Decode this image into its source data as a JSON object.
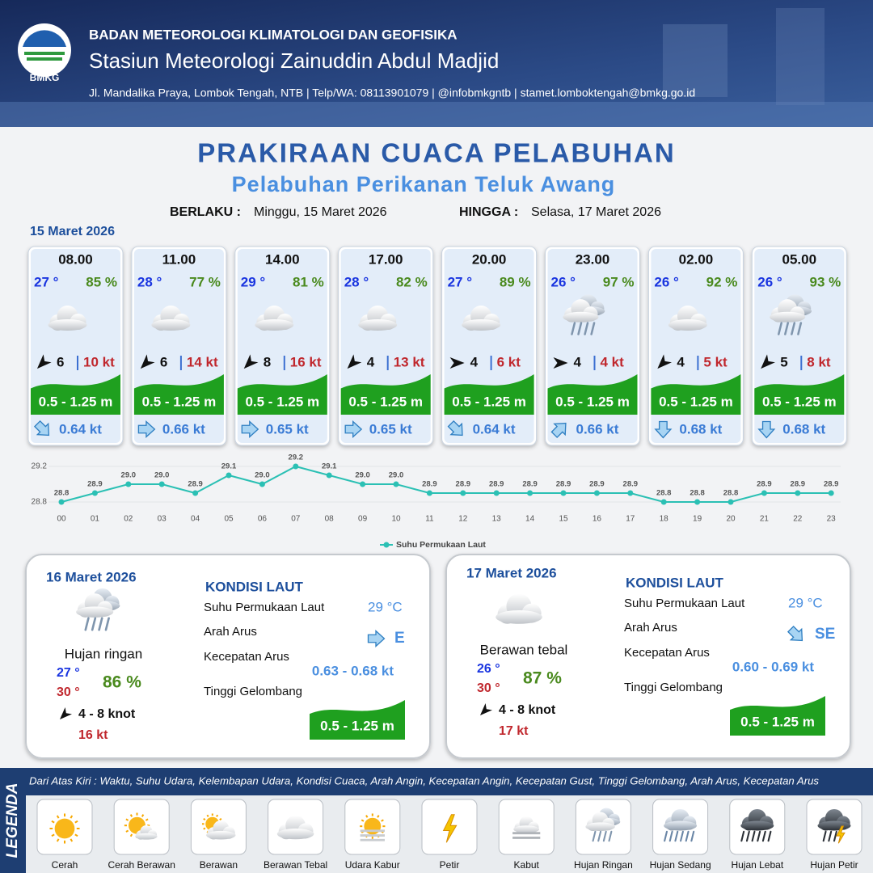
{
  "header": {
    "logo": "BMKG",
    "org": "BADAN METEOROLOGI KLIMATOLOGI DAN GEOFISIKA",
    "station": "Stasiun Meteorologi Zainuddin Abdul Madjid",
    "contact": "Jl. Mandalika Praya, Lombok Tengah, NTB | Telp/WA: 08113901079 | @infobmkgntb | stamet.lomboktengah@bmkg.go.id"
  },
  "title": "PRAKIRAAN CUACA PELABUHAN",
  "subtitle": "Pelabuhan Perikanan Teluk Awang",
  "validity": {
    "from_label": "BERLAKU :",
    "from": "Minggu, 15 Maret 2026",
    "to_label": "HINGGA :",
    "to": "Selasa, 17 Maret 2026"
  },
  "today": {
    "date": "15 Maret 2026",
    "cards": [
      {
        "time": "08.00",
        "temp": "27 °",
        "humidity": "85 %",
        "icon": "berawan-tebal",
        "wind_dir": "SW",
        "wind": "6",
        "gust": "10 kt",
        "wave": "0.5 - 1.25 m",
        "current_dir": "SE",
        "current": "0.64 kt"
      },
      {
        "time": "11.00",
        "temp": "28 °",
        "humidity": "77 %",
        "icon": "berawan-tebal",
        "wind_dir": "SW",
        "wind": "6",
        "gust": "14 kt",
        "wave": "0.5 - 1.25 m",
        "current_dir": "E",
        "current": "0.66 kt"
      },
      {
        "time": "14.00",
        "temp": "29 °",
        "humidity": "81 %",
        "icon": "berawan-tebal",
        "wind_dir": "SW",
        "wind": "8",
        "gust": "16 kt",
        "wave": "0.5 - 1.25 m",
        "current_dir": "E",
        "current": "0.65 kt"
      },
      {
        "time": "17.00",
        "temp": "28 °",
        "humidity": "82 %",
        "icon": "berawan-tebal",
        "wind_dir": "SW",
        "wind": "4",
        "gust": "13 kt",
        "wave": "0.5 - 1.25 m",
        "current_dir": "E",
        "current": "0.65 kt"
      },
      {
        "time": "20.00",
        "temp": "27 °",
        "humidity": "89 %",
        "icon": "berawan-tebal",
        "wind_dir": "E",
        "wind": "4",
        "gust": "6 kt",
        "wave": "0.5 - 1.25 m",
        "current_dir": "SE",
        "current": "0.64 kt"
      },
      {
        "time": "23.00",
        "temp": "26 °",
        "humidity": "97 %",
        "icon": "hujan-ringan",
        "wind_dir": "E",
        "wind": "4",
        "gust": "4 kt",
        "wave": "0.5 - 1.25 m",
        "current_dir": "NE",
        "current": "0.66 kt"
      },
      {
        "time": "02.00",
        "temp": "26 °",
        "humidity": "92 %",
        "icon": "berawan-tebal",
        "wind_dir": "SW",
        "wind": "4",
        "gust": "5 kt",
        "wave": "0.5 - 1.25 m",
        "current_dir": "S",
        "current": "0.68 kt"
      },
      {
        "time": "05.00",
        "temp": "26 °",
        "humidity": "93 %",
        "icon": "hujan-ringan",
        "wind_dir": "SW",
        "wind": "5",
        "gust": "8 kt",
        "wave": "0.5 - 1.25 m",
        "current_dir": "S",
        "current": "0.68 kt"
      }
    ]
  },
  "chart_data": {
    "type": "line",
    "categories": [
      "00",
      "01",
      "02",
      "03",
      "04",
      "05",
      "06",
      "07",
      "08",
      "09",
      "10",
      "11",
      "12",
      "13",
      "14",
      "15",
      "16",
      "17",
      "18",
      "19",
      "20",
      "21",
      "22",
      "23"
    ],
    "series": [
      {
        "name": "Suhu Permukaan Laut",
        "color": "#2bc0b4",
        "values": [
          28.8,
          28.9,
          29.0,
          29.0,
          28.9,
          29.1,
          29.0,
          29.2,
          29.1,
          29.0,
          29.0,
          28.9,
          28.9,
          28.9,
          28.9,
          28.9,
          28.9,
          28.9,
          28.8,
          28.8,
          28.8,
          28.9,
          28.9,
          28.9
        ],
        "value_labels": [
          "28.8",
          "28.9",
          "29.0",
          "29.0",
          "28.9",
          "29.1",
          "29.0",
          "29.2",
          "29.1",
          "29.0",
          "29.0",
          "28.9",
          "28.9",
          "28.9",
          "28.9",
          "28.9",
          "28.9",
          "28.9",
          "28.8",
          "28.8",
          "28.8",
          "28.9",
          "28.9",
          "28.9"
        ]
      }
    ],
    "ylim": [
      28.75,
      29.25
    ],
    "yticks": [
      28.8,
      29.2
    ],
    "grid": true
  },
  "days": [
    {
      "date": "16 Maret 2026",
      "icon": "hujan-ringan",
      "condition": "Hujan ringan",
      "temp_min": "27 °",
      "temp_max": "30 °",
      "humidity": "86 %",
      "wind_dir": "SW",
      "wind": "4  - 8 knot",
      "gust": "16 kt",
      "sea": {
        "heading": "KONDISI LAUT",
        "rows": [
          {
            "label": "Suhu Permukaan Laut",
            "value": "29 °C"
          },
          {
            "label": "Arah Arus",
            "value": "E"
          },
          {
            "label": "Kecepatan Arus",
            "value": "0.63 - 0.68 kt"
          },
          {
            "label": "Tinggi Gelombang",
            "value": "0.5 - 1.25 m"
          }
        ]
      }
    },
    {
      "date": "17 Maret 2026",
      "icon": "berawan-tebal",
      "condition": "Berawan tebal",
      "temp_min": "26 °",
      "temp_max": "30 °",
      "humidity": "87 %",
      "wind_dir": "SW",
      "wind": "4  - 8 knot",
      "gust": "17 kt",
      "sea": {
        "heading": "KONDISI LAUT",
        "rows": [
          {
            "label": "Suhu Permukaan Laut",
            "value": "29 °C"
          },
          {
            "label": "Arah Arus",
            "value": "SE"
          },
          {
            "label": "Kecepatan Arus",
            "value": "0.60 - 0.69 kt"
          },
          {
            "label": "Tinggi Gelombang",
            "value": "0.5 - 1.25 m"
          }
        ]
      }
    }
  ],
  "legend": {
    "title": "LEGENDA",
    "description": "Dari Atas Kiri : Waktu, Suhu Udara, Kelembapan Udara, Kondisi Cuaca, Arah Angin, Kecepatan Angin, Kecepatan Gust, Tinggi Gelombang, Arah Arus, Kecepatan Arus",
    "items": [
      "Cerah",
      "Cerah Berawan",
      "Berawan",
      "Berawan Tebal",
      "Udara Kabur",
      "Petir",
      "Kabut",
      "Hujan Ringan",
      "Hujan Sedang",
      "Hujan Lebat",
      "Hujan Petir"
    ]
  }
}
